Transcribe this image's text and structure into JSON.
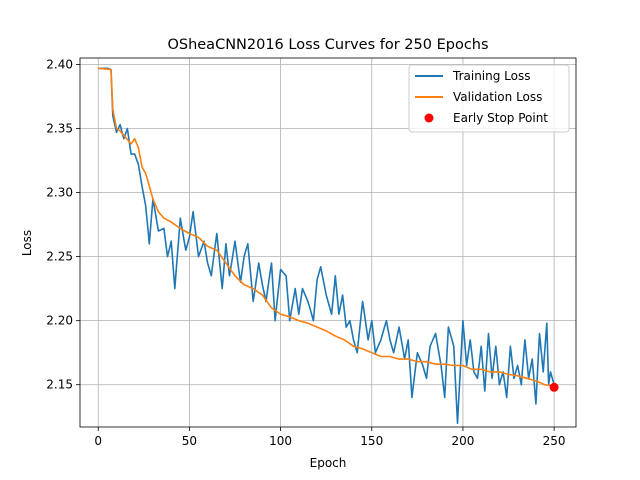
{
  "chart_data": {
    "type": "line",
    "title": "OSheaCNN2016 Loss Curves for 250 Epochs",
    "xlabel": "Epoch",
    "ylabel": "Loss",
    "xlim": [
      -10,
      262
    ],
    "ylim": [
      2.117,
      2.405
    ],
    "xticks": [
      0,
      50,
      100,
      150,
      200,
      250
    ],
    "yticks": [
      2.15,
      2.2,
      2.25,
      2.3,
      2.35,
      2.4
    ],
    "ytick_labels": [
      "2.15",
      "2.20",
      "2.25",
      "2.30",
      "2.35",
      "2.40"
    ],
    "grid": true,
    "legend_position": "top-right",
    "series": [
      {
        "name": "Training Loss",
        "color": "#1f77b4",
        "anchors": [
          [
            0,
            2.397
          ],
          [
            5,
            2.397
          ],
          [
            7,
            2.396
          ],
          [
            8,
            2.36
          ],
          [
            10,
            2.347
          ],
          [
            12,
            2.353
          ],
          [
            14,
            2.342
          ],
          [
            16,
            2.35
          ],
          [
            18,
            2.33
          ],
          [
            20,
            2.33
          ],
          [
            22,
            2.322
          ],
          [
            24,
            2.305
          ],
          [
            26,
            2.29
          ],
          [
            28,
            2.26
          ],
          [
            30,
            2.295
          ],
          [
            33,
            2.27
          ],
          [
            36,
            2.272
          ],
          [
            38,
            2.25
          ],
          [
            40,
            2.262
          ],
          [
            42,
            2.225
          ],
          [
            45,
            2.28
          ],
          [
            48,
            2.255
          ],
          [
            50,
            2.265
          ],
          [
            52,
            2.285
          ],
          [
            55,
            2.25
          ],
          [
            58,
            2.262
          ],
          [
            60,
            2.245
          ],
          [
            62,
            2.235
          ],
          [
            65,
            2.268
          ],
          [
            68,
            2.225
          ],
          [
            70,
            2.26
          ],
          [
            72,
            2.235
          ],
          [
            75,
            2.262
          ],
          [
            78,
            2.23
          ],
          [
            80,
            2.25
          ],
          [
            82,
            2.26
          ],
          [
            85,
            2.215
          ],
          [
            88,
            2.245
          ],
          [
            90,
            2.228
          ],
          [
            92,
            2.215
          ],
          [
            95,
            2.245
          ],
          [
            97,
            2.2
          ],
          [
            100,
            2.24
          ],
          [
            103,
            2.235
          ],
          [
            105,
            2.2
          ],
          [
            108,
            2.225
          ],
          [
            110,
            2.205
          ],
          [
            112,
            2.225
          ],
          [
            115,
            2.215
          ],
          [
            118,
            2.2
          ],
          [
            120,
            2.232
          ],
          [
            122,
            2.242
          ],
          [
            125,
            2.22
          ],
          [
            128,
            2.205
          ],
          [
            130,
            2.235
          ],
          [
            132,
            2.205
          ],
          [
            134,
            2.22
          ],
          [
            136,
            2.195
          ],
          [
            138,
            2.2
          ],
          [
            140,
            2.185
          ],
          [
            142,
            2.175
          ],
          [
            145,
            2.215
          ],
          [
            148,
            2.185
          ],
          [
            150,
            2.2
          ],
          [
            152,
            2.175
          ],
          [
            155,
            2.185
          ],
          [
            158,
            2.2
          ],
          [
            160,
            2.185
          ],
          [
            162,
            2.175
          ],
          [
            165,
            2.195
          ],
          [
            168,
            2.17
          ],
          [
            170,
            2.185
          ],
          [
            172,
            2.14
          ],
          [
            175,
            2.175
          ],
          [
            178,
            2.165
          ],
          [
            180,
            2.155
          ],
          [
            182,
            2.18
          ],
          [
            185,
            2.19
          ],
          [
            188,
            2.165
          ],
          [
            190,
            2.14
          ],
          [
            192,
            2.195
          ],
          [
            195,
            2.18
          ],
          [
            197,
            2.12
          ],
          [
            200,
            2.2
          ],
          [
            202,
            2.165
          ],
          [
            204,
            2.185
          ],
          [
            206,
            2.16
          ],
          [
            208,
            2.155
          ],
          [
            210,
            2.18
          ],
          [
            212,
            2.145
          ],
          [
            214,
            2.19
          ],
          [
            216,
            2.155
          ],
          [
            218,
            2.18
          ],
          [
            220,
            2.15
          ],
          [
            222,
            2.16
          ],
          [
            224,
            2.14
          ],
          [
            226,
            2.18
          ],
          [
            228,
            2.155
          ],
          [
            230,
            2.165
          ],
          [
            232,
            2.15
          ],
          [
            234,
            2.185
          ],
          [
            236,
            2.155
          ],
          [
            238,
            2.17
          ],
          [
            240,
            2.135
          ],
          [
            242,
            2.19
          ],
          [
            244,
            2.16
          ],
          [
            246,
            2.198
          ],
          [
            247,
            2.15
          ],
          [
            248,
            2.16
          ],
          [
            249,
            2.155
          ],
          [
            250,
            2.15
          ]
        ]
      },
      {
        "name": "Validation Loss",
        "color": "#ff7f0e",
        "anchors": [
          [
            0,
            2.397
          ],
          [
            7,
            2.396
          ],
          [
            8,
            2.365
          ],
          [
            10,
            2.35
          ],
          [
            12,
            2.348
          ],
          [
            15,
            2.343
          ],
          [
            18,
            2.338
          ],
          [
            20,
            2.342
          ],
          [
            22,
            2.335
          ],
          [
            24,
            2.32
          ],
          [
            26,
            2.315
          ],
          [
            28,
            2.305
          ],
          [
            30,
            2.295
          ],
          [
            33,
            2.285
          ],
          [
            36,
            2.28
          ],
          [
            40,
            2.277
          ],
          [
            45,
            2.272
          ],
          [
            50,
            2.268
          ],
          [
            55,
            2.265
          ],
          [
            60,
            2.258
          ],
          [
            65,
            2.255
          ],
          [
            70,
            2.245
          ],
          [
            75,
            2.235
          ],
          [
            80,
            2.228
          ],
          [
            85,
            2.225
          ],
          [
            90,
            2.22
          ],
          [
            95,
            2.21
          ],
          [
            100,
            2.205
          ],
          [
            105,
            2.203
          ],
          [
            110,
            2.2
          ],
          [
            115,
            2.198
          ],
          [
            120,
            2.195
          ],
          [
            125,
            2.192
          ],
          [
            130,
            2.188
          ],
          [
            135,
            2.185
          ],
          [
            140,
            2.18
          ],
          [
            145,
            2.178
          ],
          [
            150,
            2.175
          ],
          [
            155,
            2.172
          ],
          [
            160,
            2.172
          ],
          [
            165,
            2.17
          ],
          [
            170,
            2.17
          ],
          [
            175,
            2.168
          ],
          [
            180,
            2.168
          ],
          [
            185,
            2.166
          ],
          [
            190,
            2.166
          ],
          [
            195,
            2.165
          ],
          [
            200,
            2.165
          ],
          [
            205,
            2.162
          ],
          [
            210,
            2.162
          ],
          [
            215,
            2.16
          ],
          [
            220,
            2.16
          ],
          [
            225,
            2.158
          ],
          [
            230,
            2.157
          ],
          [
            235,
            2.155
          ],
          [
            240,
            2.153
          ],
          [
            245,
            2.15
          ],
          [
            250,
            2.149
          ]
        ]
      }
    ],
    "early_stop": {
      "name": "Early Stop Point",
      "color": "#ff0000",
      "x": 250,
      "y": 2.148
    }
  }
}
